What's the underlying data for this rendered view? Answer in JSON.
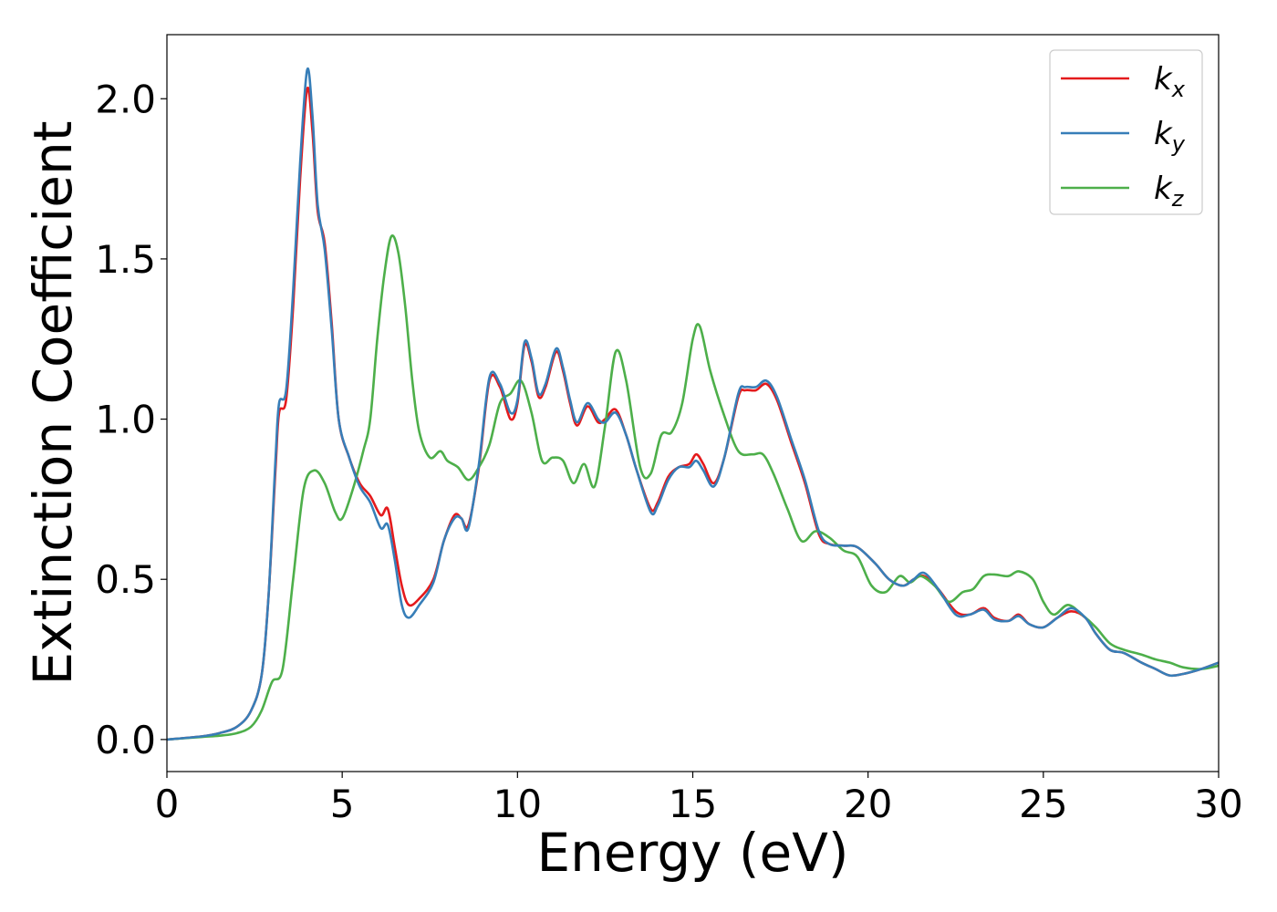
{
  "chart_data": {
    "type": "line",
    "xlabel": "Energy (eV)",
    "ylabel": "Extinction Coefficient",
    "xlim": [
      0,
      30
    ],
    "ylim": [
      -0.1,
      2.2
    ],
    "xticks": [
      0,
      5,
      10,
      15,
      20,
      25,
      30
    ],
    "xtick_labels": [
      "0",
      "5",
      "10",
      "15",
      "20",
      "25",
      "30"
    ],
    "yticks": [
      0.0,
      0.5,
      1.0,
      1.5,
      2.0
    ],
    "ytick_labels": [
      "0.0",
      "0.5",
      "1.0",
      "1.5",
      "2.0"
    ],
    "grid": false,
    "legend_position": "top-right",
    "series": [
      {
        "name": "kx",
        "label_base": "k",
        "label_sub": "x",
        "color": "#e41a1c",
        "points": [
          [
            0,
            0
          ],
          [
            1,
            0.01
          ],
          [
            1.5,
            0.02
          ],
          [
            2,
            0.04
          ],
          [
            2.4,
            0.09
          ],
          [
            2.7,
            0.2
          ],
          [
            2.9,
            0.45
          ],
          [
            3.1,
            0.85
          ],
          [
            3.2,
            1.02
          ],
          [
            3.4,
            1.06
          ],
          [
            3.6,
            1.35
          ],
          [
            3.8,
            1.75
          ],
          [
            4.0,
            2.03
          ],
          [
            4.15,
            1.9
          ],
          [
            4.3,
            1.65
          ],
          [
            4.5,
            1.55
          ],
          [
            4.7,
            1.3
          ],
          [
            4.9,
            1.0
          ],
          [
            5.2,
            0.88
          ],
          [
            5.5,
            0.8
          ],
          [
            5.8,
            0.76
          ],
          [
            6.1,
            0.7
          ],
          [
            6.3,
            0.72
          ],
          [
            6.5,
            0.6
          ],
          [
            6.7,
            0.48
          ],
          [
            6.9,
            0.42
          ],
          [
            7.2,
            0.44
          ],
          [
            7.6,
            0.5
          ],
          [
            7.9,
            0.62
          ],
          [
            8.2,
            0.7
          ],
          [
            8.4,
            0.69
          ],
          [
            8.6,
            0.67
          ],
          [
            8.9,
            0.85
          ],
          [
            9.2,
            1.12
          ],
          [
            9.5,
            1.1
          ],
          [
            9.8,
            1.0
          ],
          [
            10.0,
            1.05
          ],
          [
            10.2,
            1.23
          ],
          [
            10.4,
            1.18
          ],
          [
            10.6,
            1.07
          ],
          [
            10.8,
            1.1
          ],
          [
            11.1,
            1.21
          ],
          [
            11.3,
            1.15
          ],
          [
            11.5,
            1.05
          ],
          [
            11.7,
            0.98
          ],
          [
            12.0,
            1.04
          ],
          [
            12.3,
            0.99
          ],
          [
            12.5,
            1.0
          ],
          [
            12.8,
            1.03
          ],
          [
            13.1,
            0.95
          ],
          [
            13.4,
            0.84
          ],
          [
            13.8,
            0.72
          ],
          [
            14.0,
            0.74
          ],
          [
            14.3,
            0.82
          ],
          [
            14.6,
            0.85
          ],
          [
            14.9,
            0.86
          ],
          [
            15.1,
            0.89
          ],
          [
            15.3,
            0.86
          ],
          [
            15.6,
            0.8
          ],
          [
            15.9,
            0.88
          ],
          [
            16.3,
            1.07
          ],
          [
            16.5,
            1.09
          ],
          [
            16.8,
            1.09
          ],
          [
            17.1,
            1.11
          ],
          [
            17.4,
            1.06
          ],
          [
            17.8,
            0.93
          ],
          [
            18.2,
            0.8
          ],
          [
            18.6,
            0.64
          ],
          [
            18.9,
            0.61
          ],
          [
            19.3,
            0.605
          ],
          [
            19.7,
            0.6
          ],
          [
            20.2,
            0.55
          ],
          [
            20.6,
            0.5
          ],
          [
            21.0,
            0.48
          ],
          [
            21.3,
            0.5
          ],
          [
            21.6,
            0.51
          ],
          [
            22.0,
            0.47
          ],
          [
            22.5,
            0.4
          ],
          [
            22.9,
            0.39
          ],
          [
            23.3,
            0.41
          ],
          [
            23.6,
            0.38
          ],
          [
            24.0,
            0.37
          ],
          [
            24.3,
            0.39
          ],
          [
            24.6,
            0.36
          ],
          [
            25.0,
            0.35
          ],
          [
            25.4,
            0.38
          ],
          [
            25.8,
            0.4
          ],
          [
            26.2,
            0.38
          ],
          [
            26.5,
            0.33
          ],
          [
            26.9,
            0.28
          ],
          [
            27.3,
            0.27
          ],
          [
            27.8,
            0.24
          ],
          [
            28.2,
            0.22
          ],
          [
            28.6,
            0.2
          ],
          [
            29.0,
            0.205
          ],
          [
            29.5,
            0.22
          ],
          [
            30.0,
            0.24
          ]
        ]
      },
      {
        "name": "ky",
        "label_base": "k",
        "label_sub": "y",
        "color": "#377eb8",
        "points": [
          [
            0,
            0
          ],
          [
            1,
            0.01
          ],
          [
            1.5,
            0.02
          ],
          [
            2,
            0.04
          ],
          [
            2.4,
            0.09
          ],
          [
            2.7,
            0.2
          ],
          [
            2.9,
            0.45
          ],
          [
            3.1,
            0.88
          ],
          [
            3.2,
            1.05
          ],
          [
            3.4,
            1.09
          ],
          [
            3.6,
            1.4
          ],
          [
            3.8,
            1.8
          ],
          [
            4.0,
            2.09
          ],
          [
            4.15,
            1.95
          ],
          [
            4.3,
            1.67
          ],
          [
            4.5,
            1.53
          ],
          [
            4.7,
            1.28
          ],
          [
            4.9,
            1.0
          ],
          [
            5.2,
            0.88
          ],
          [
            5.5,
            0.79
          ],
          [
            5.8,
            0.74
          ],
          [
            6.1,
            0.66
          ],
          [
            6.3,
            0.67
          ],
          [
            6.5,
            0.56
          ],
          [
            6.7,
            0.42
          ],
          [
            6.9,
            0.38
          ],
          [
            7.2,
            0.42
          ],
          [
            7.6,
            0.49
          ],
          [
            7.9,
            0.62
          ],
          [
            8.2,
            0.69
          ],
          [
            8.4,
            0.69
          ],
          [
            8.6,
            0.66
          ],
          [
            8.9,
            0.86
          ],
          [
            9.2,
            1.13
          ],
          [
            9.5,
            1.11
          ],
          [
            9.8,
            1.02
          ],
          [
            10.0,
            1.06
          ],
          [
            10.2,
            1.24
          ],
          [
            10.4,
            1.19
          ],
          [
            10.6,
            1.08
          ],
          [
            10.8,
            1.11
          ],
          [
            11.1,
            1.22
          ],
          [
            11.3,
            1.16
          ],
          [
            11.5,
            1.06
          ],
          [
            11.7,
            0.99
          ],
          [
            12.0,
            1.05
          ],
          [
            12.3,
            1.0
          ],
          [
            12.5,
            0.99
          ],
          [
            12.8,
            1.02
          ],
          [
            13.1,
            0.95
          ],
          [
            13.4,
            0.84
          ],
          [
            13.8,
            0.71
          ],
          [
            14.0,
            0.73
          ],
          [
            14.3,
            0.81
          ],
          [
            14.6,
            0.85
          ],
          [
            14.9,
            0.85
          ],
          [
            15.1,
            0.87
          ],
          [
            15.3,
            0.84
          ],
          [
            15.6,
            0.79
          ],
          [
            15.9,
            0.88
          ],
          [
            16.3,
            1.08
          ],
          [
            16.5,
            1.1
          ],
          [
            16.8,
            1.1
          ],
          [
            17.1,
            1.12
          ],
          [
            17.4,
            1.07
          ],
          [
            17.8,
            0.94
          ],
          [
            18.2,
            0.81
          ],
          [
            18.6,
            0.65
          ],
          [
            18.9,
            0.61
          ],
          [
            19.3,
            0.605
          ],
          [
            19.7,
            0.6
          ],
          [
            20.2,
            0.55
          ],
          [
            20.6,
            0.5
          ],
          [
            21.0,
            0.48
          ],
          [
            21.3,
            0.5
          ],
          [
            21.6,
            0.52
          ],
          [
            22.0,
            0.47
          ],
          [
            22.5,
            0.39
          ],
          [
            22.9,
            0.39
          ],
          [
            23.3,
            0.405
          ],
          [
            23.6,
            0.375
          ],
          [
            24.0,
            0.37
          ],
          [
            24.3,
            0.385
          ],
          [
            24.6,
            0.36
          ],
          [
            25.0,
            0.35
          ],
          [
            25.4,
            0.38
          ],
          [
            25.8,
            0.41
          ],
          [
            26.2,
            0.38
          ],
          [
            26.5,
            0.33
          ],
          [
            26.9,
            0.28
          ],
          [
            27.3,
            0.27
          ],
          [
            27.8,
            0.24
          ],
          [
            28.2,
            0.22
          ],
          [
            28.6,
            0.2
          ],
          [
            29.0,
            0.205
          ],
          [
            29.5,
            0.22
          ],
          [
            30.0,
            0.24
          ]
        ]
      },
      {
        "name": "kz",
        "label_base": "k",
        "label_sub": "z",
        "color": "#4daf4a",
        "points": [
          [
            0,
            0
          ],
          [
            1,
            0.008
          ],
          [
            1.5,
            0.012
          ],
          [
            2,
            0.02
          ],
          [
            2.4,
            0.04
          ],
          [
            2.7,
            0.09
          ],
          [
            3.0,
            0.18
          ],
          [
            3.3,
            0.22
          ],
          [
            3.6,
            0.5
          ],
          [
            3.9,
            0.78
          ],
          [
            4.2,
            0.84
          ],
          [
            4.5,
            0.8
          ],
          [
            4.8,
            0.71
          ],
          [
            5.0,
            0.69
          ],
          [
            5.3,
            0.78
          ],
          [
            5.6,
            0.9
          ],
          [
            5.8,
            1.0
          ],
          [
            6.0,
            1.25
          ],
          [
            6.2,
            1.45
          ],
          [
            6.4,
            1.57
          ],
          [
            6.6,
            1.52
          ],
          [
            6.8,
            1.35
          ],
          [
            7.0,
            1.12
          ],
          [
            7.2,
            0.96
          ],
          [
            7.5,
            0.88
          ],
          [
            7.8,
            0.9
          ],
          [
            8.0,
            0.87
          ],
          [
            8.3,
            0.85
          ],
          [
            8.6,
            0.81
          ],
          [
            8.9,
            0.85
          ],
          [
            9.2,
            0.92
          ],
          [
            9.5,
            1.05
          ],
          [
            9.8,
            1.08
          ],
          [
            10.1,
            1.12
          ],
          [
            10.4,
            1.02
          ],
          [
            10.7,
            0.87
          ],
          [
            11.0,
            0.88
          ],
          [
            11.3,
            0.87
          ],
          [
            11.6,
            0.8
          ],
          [
            11.9,
            0.86
          ],
          [
            12.2,
            0.79
          ],
          [
            12.5,
            0.98
          ],
          [
            12.8,
            1.21
          ],
          [
            13.1,
            1.12
          ],
          [
            13.5,
            0.85
          ],
          [
            13.8,
            0.83
          ],
          [
            14.1,
            0.95
          ],
          [
            14.4,
            0.96
          ],
          [
            14.7,
            1.05
          ],
          [
            15.0,
            1.25
          ],
          [
            15.2,
            1.29
          ],
          [
            15.5,
            1.15
          ],
          [
            15.9,
            1.01
          ],
          [
            16.3,
            0.9
          ],
          [
            16.7,
            0.89
          ],
          [
            17.0,
            0.89
          ],
          [
            17.3,
            0.83
          ],
          [
            17.7,
            0.72
          ],
          [
            18.1,
            0.62
          ],
          [
            18.5,
            0.65
          ],
          [
            18.9,
            0.63
          ],
          [
            19.3,
            0.59
          ],
          [
            19.7,
            0.57
          ],
          [
            20.1,
            0.48
          ],
          [
            20.5,
            0.46
          ],
          [
            20.9,
            0.51
          ],
          [
            21.2,
            0.49
          ],
          [
            21.5,
            0.51
          ],
          [
            21.9,
            0.48
          ],
          [
            22.3,
            0.43
          ],
          [
            22.7,
            0.46
          ],
          [
            23.0,
            0.47
          ],
          [
            23.3,
            0.51
          ],
          [
            23.6,
            0.515
          ],
          [
            24.0,
            0.51
          ],
          [
            24.3,
            0.525
          ],
          [
            24.7,
            0.5
          ],
          [
            25.0,
            0.43
          ],
          [
            25.3,
            0.39
          ],
          [
            25.7,
            0.42
          ],
          [
            26.1,
            0.39
          ],
          [
            26.5,
            0.35
          ],
          [
            26.9,
            0.3
          ],
          [
            27.3,
            0.28
          ],
          [
            27.8,
            0.265
          ],
          [
            28.2,
            0.25
          ],
          [
            28.6,
            0.24
          ],
          [
            29.0,
            0.225
          ],
          [
            29.5,
            0.22
          ],
          [
            30.0,
            0.23
          ]
        ]
      }
    ]
  }
}
